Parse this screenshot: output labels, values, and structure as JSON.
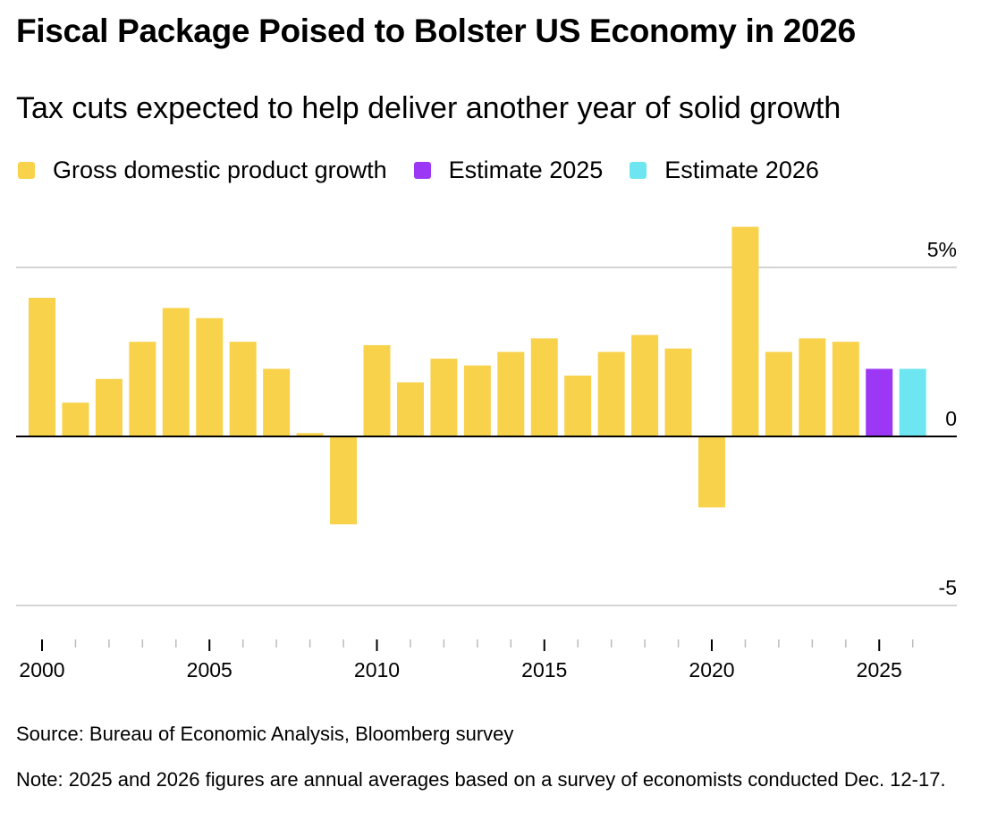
{
  "title": "Fiscal Package Poised to Bolster US Economy in 2026",
  "subtitle": "Tax cuts expected to help deliver another year of solid growth",
  "legend": [
    {
      "label": "Gross domestic product growth",
      "color": "#F7D24A"
    },
    {
      "label": "Estimate 2025",
      "color": "#9B37F5"
    },
    {
      "label": "Estimate 2026",
      "color": "#6EE6F2"
    }
  ],
  "source": "Source: Bureau of Economic Analysis, Bloomberg survey",
  "note": "Note: 2025 and 2026 figures are annual averages based on a survey of economists conducted Dec. 12-17.",
  "chart_data": {
    "type": "bar",
    "title": "Fiscal Package Poised to Bolster US Economy in 2026",
    "subtitle": "Tax cuts expected to help deliver another year of solid growth",
    "xlabel": "",
    "ylabel": "",
    "ylim": [
      -5,
      5
    ],
    "y_ticks": [
      {
        "value": 5,
        "label": "5%"
      },
      {
        "value": 0,
        "label": "0"
      },
      {
        "value": -5,
        "label": "-5"
      }
    ],
    "y_axis_position": "right",
    "grid": true,
    "legend_position": "top-left",
    "x_tick_labels": [
      "2000",
      "2005",
      "2010",
      "2015",
      "2020",
      "2025"
    ],
    "categories": [
      "2000",
      "2001",
      "2002",
      "2003",
      "2004",
      "2005",
      "2006",
      "2007",
      "2008",
      "2009",
      "2010",
      "2011",
      "2012",
      "2013",
      "2014",
      "2015",
      "2016",
      "2017",
      "2018",
      "2019",
      "2020",
      "2021",
      "2022",
      "2023",
      "2024",
      "2025",
      "2026"
    ],
    "series": [
      {
        "name": "Gross domestic product growth",
        "color": "#F7D24A",
        "values": [
          4.1,
          1.0,
          1.7,
          2.8,
          3.8,
          3.5,
          2.8,
          2.0,
          0.1,
          -2.6,
          2.7,
          1.6,
          2.3,
          2.1,
          2.5,
          2.9,
          1.8,
          2.5,
          3.0,
          2.6,
          -2.1,
          6.2,
          2.5,
          2.9,
          2.8,
          null,
          null
        ]
      },
      {
        "name": "Estimate 2025",
        "color": "#9B37F5",
        "values": [
          null,
          null,
          null,
          null,
          null,
          null,
          null,
          null,
          null,
          null,
          null,
          null,
          null,
          null,
          null,
          null,
          null,
          null,
          null,
          null,
          null,
          null,
          null,
          null,
          null,
          2.0,
          null
        ]
      },
      {
        "name": "Estimate 2026",
        "color": "#6EE6F2",
        "values": [
          null,
          null,
          null,
          null,
          null,
          null,
          null,
          null,
          null,
          null,
          null,
          null,
          null,
          null,
          null,
          null,
          null,
          null,
          null,
          null,
          null,
          null,
          null,
          null,
          null,
          null,
          2.0
        ]
      }
    ]
  }
}
